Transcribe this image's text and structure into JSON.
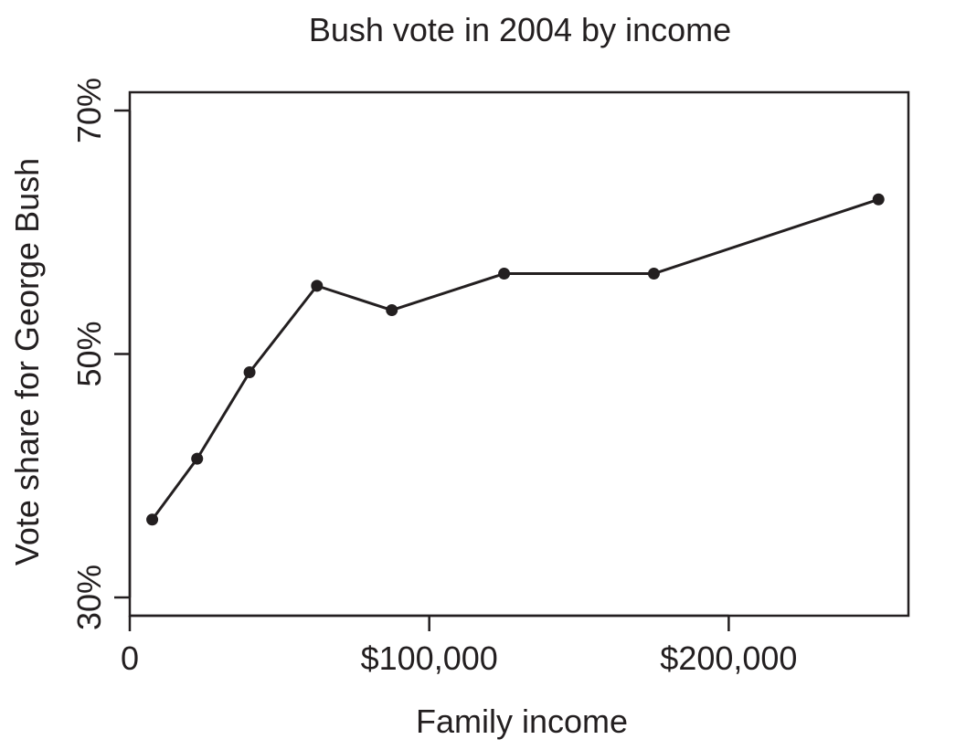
{
  "chart_data": {
    "type": "line",
    "title": "Bush vote in 2004 by income",
    "xlabel": "Family income",
    "ylabel": "Vote share for George Bush",
    "xlim": [
      0,
      260000
    ],
    "ylim": [
      28.5,
      71.5
    ],
    "x_ticks": [
      {
        "value": 0,
        "label": "0"
      },
      {
        "value": 100000,
        "label": "$100,000"
      },
      {
        "value": 200000,
        "label": "$200,000"
      }
    ],
    "y_ticks": [
      {
        "value": 30,
        "label": "30%"
      },
      {
        "value": 50,
        "label": "50%"
      },
      {
        "value": 70,
        "label": "70%"
      }
    ],
    "series": [
      {
        "x": [
          7500,
          22500,
          40000,
          62500,
          87500,
          125000,
          175000,
          250000
        ],
        "y": [
          36.4,
          41.4,
          48.5,
          55.6,
          53.6,
          56.6,
          56.6,
          62.7
        ]
      }
    ],
    "grid": false,
    "legend": "none",
    "colors": {
      "line": "#231f20",
      "axis": "#231f20",
      "background": "#ffffff"
    }
  }
}
